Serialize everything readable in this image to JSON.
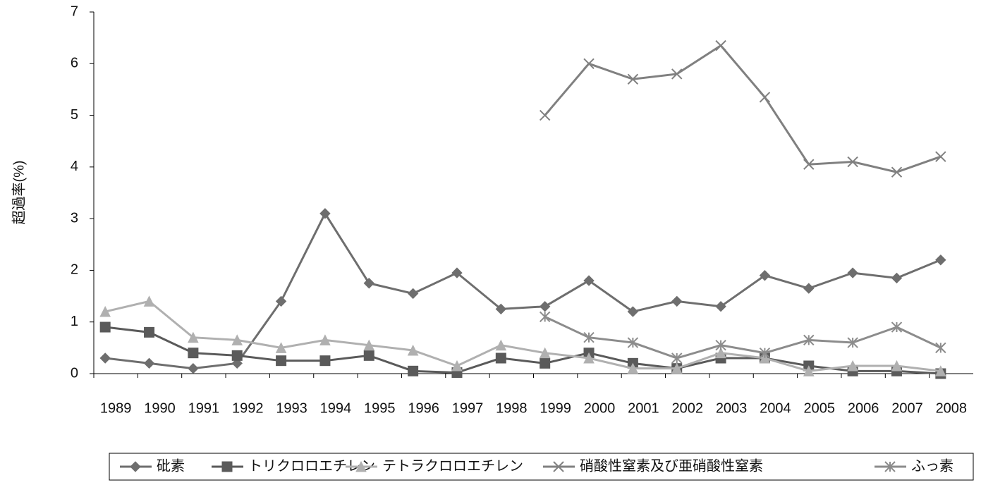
{
  "chart_data": {
    "type": "line",
    "y_label": "超過率(%)",
    "categories": [
      "1989",
      "1990",
      "1991",
      "1992",
      "1993",
      "1994",
      "1995",
      "1996",
      "1997",
      "1998",
      "1999",
      "2000",
      "2001",
      "2002",
      "2003",
      "2004",
      "2005",
      "2006",
      "2007",
      "2008"
    ],
    "series": [
      {
        "name": "砒素",
        "color": "#6e6e6e",
        "marker": "diamond",
        "values": [
          0.3,
          0.2,
          0.1,
          0.2,
          1.4,
          3.1,
          1.75,
          1.55,
          1.95,
          1.25,
          1.3,
          1.8,
          1.2,
          1.4,
          1.3,
          1.9,
          1.65,
          1.95,
          1.85,
          2.2
        ]
      },
      {
        "name": "トリクロロエチレン",
        "color": "#5a5a5a",
        "marker": "square",
        "values": [
          0.9,
          0.8,
          0.4,
          0.35,
          0.25,
          0.25,
          0.35,
          0.05,
          0.02,
          0.3,
          0.2,
          0.4,
          0.2,
          0.1,
          0.3,
          0.3,
          0.15,
          0.05,
          0.05,
          0
        ]
      },
      {
        "name": "テトラクロロエチレン",
        "color": "#b0b0b0",
        "marker": "triangle",
        "values": [
          1.2,
          1.4,
          0.7,
          0.65,
          0.5,
          0.65,
          0.55,
          0.45,
          0.15,
          0.55,
          0.4,
          0.3,
          0.1,
          0.1,
          0.4,
          0.3,
          0.05,
          0.15,
          0.15,
          0.05
        ]
      },
      {
        "name": "硝酸性窒素及び亜硝酸性窒素",
        "color": "#808080",
        "marker": "x",
        "values": [
          null,
          null,
          null,
          null,
          null,
          null,
          null,
          null,
          null,
          null,
          5.0,
          6.0,
          5.7,
          5.8,
          6.35,
          5.35,
          4.05,
          4.1,
          3.9,
          4.2
        ]
      },
      {
        "name": "ふっ素",
        "color": "#8c8c8c",
        "marker": "asterisk",
        "values": [
          null,
          null,
          null,
          null,
          null,
          null,
          null,
          null,
          null,
          null,
          1.1,
          0.7,
          0.6,
          0.3,
          0.55,
          0.4,
          0.65,
          0.6,
          0.9,
          0.5
        ]
      }
    ],
    "ylim": [
      0,
      7
    ],
    "yticks": [
      0,
      1,
      2,
      3,
      4,
      5,
      6,
      7
    ],
    "grid": false,
    "legend": "bottom"
  }
}
